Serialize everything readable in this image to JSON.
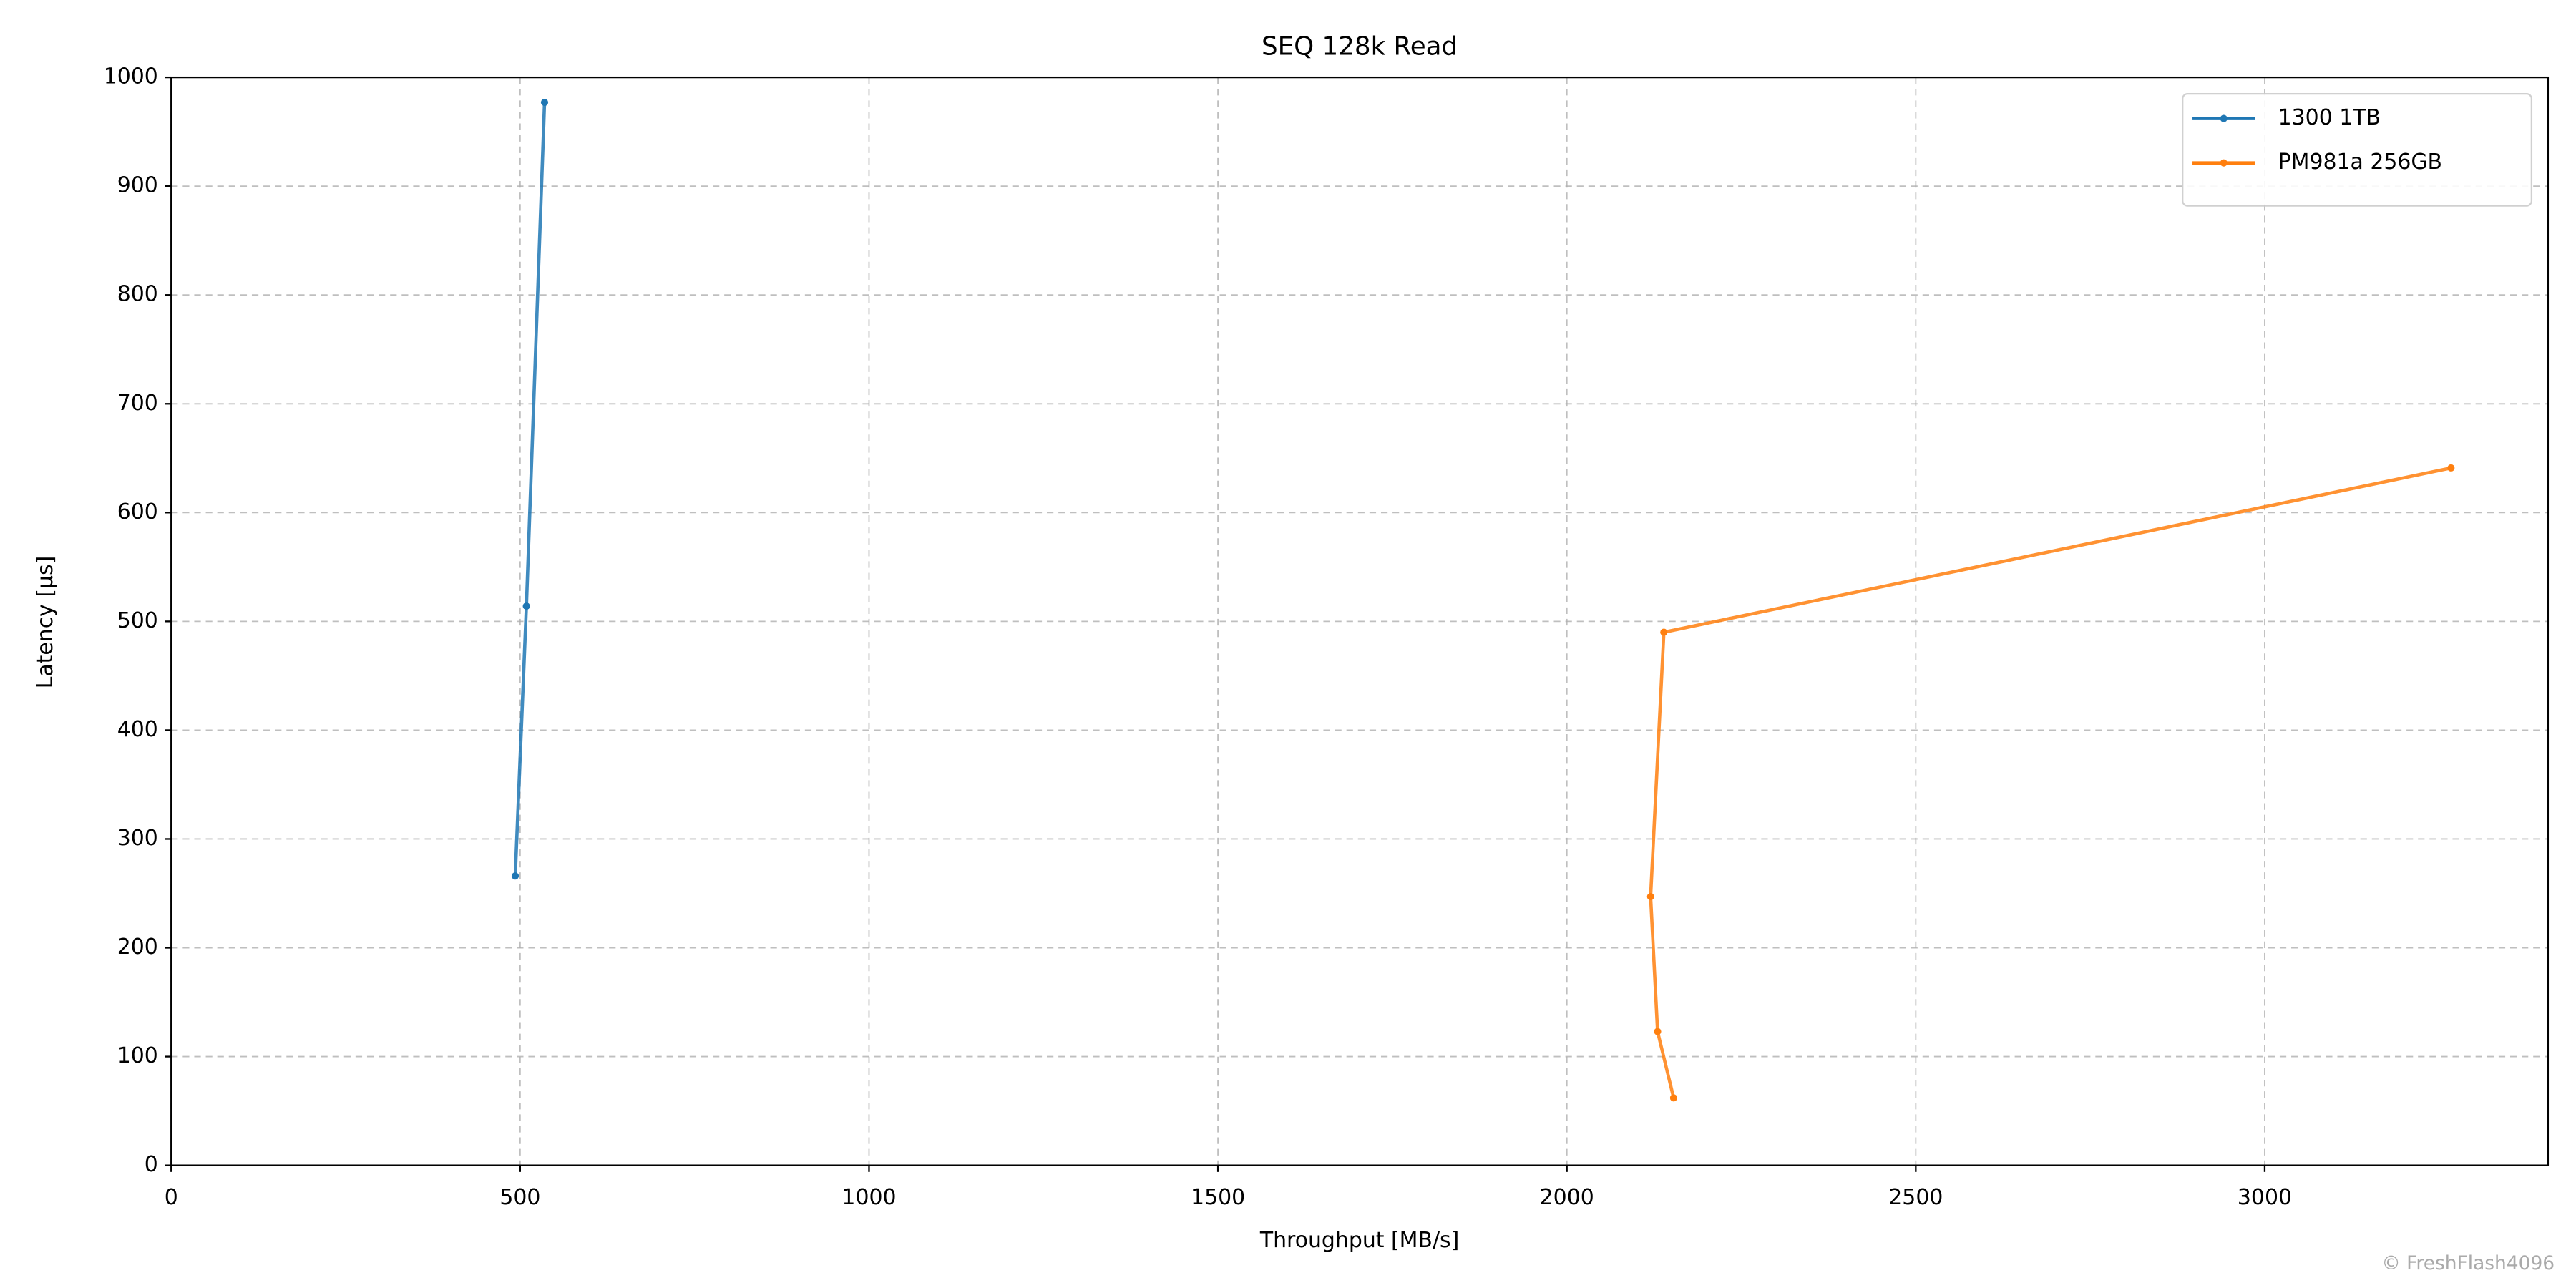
{
  "chart_data": {
    "type": "line",
    "title": "SEQ 128k Read",
    "x_label": "Throughput [MB/s]",
    "y_label": "Latency [µs]",
    "xlim": [
      0,
      3406
    ],
    "ylim": [
      0,
      1000
    ],
    "xticks": [
      0,
      500,
      1000,
      1500,
      2000,
      2500,
      3000
    ],
    "yticks": [
      0,
      100,
      200,
      300,
      400,
      500,
      600,
      700,
      800,
      900,
      1000
    ],
    "grid": true,
    "legend": "upper right",
    "series": [
      {
        "name": "1300 1TB",
        "color": "#1f77b4",
        "x": [
          493,
          509,
          535
        ],
        "y": [
          266,
          514,
          977
        ]
      },
      {
        "name": "PM981a 256GB",
        "color": "#ff7f0e",
        "x": [
          2153,
          2130,
          2120,
          2139,
          3267
        ],
        "y": [
          62,
          123,
          247,
          490,
          641
        ]
      }
    ],
    "watermark": "© FreshFlash4096"
  }
}
